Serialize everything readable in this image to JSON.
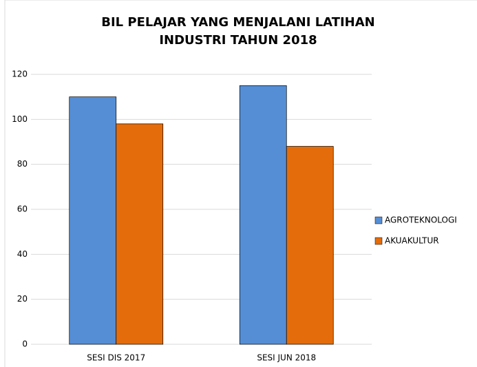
{
  "chart_data": {
    "type": "bar",
    "title": "BIL PELAJAR YANG MENJALANI LATIHAN INDUSTRI TAHUN 2018",
    "categories": [
      "SESI DIS 2017",
      "SESI JUN 2018"
    ],
    "series": [
      {
        "name": "AGROTEKNOLOGI",
        "color": "#558ed5",
        "values": [
          110,
          115
        ]
      },
      {
        "name": "AKUAKULTUR",
        "color": "#e46c0a",
        "values": [
          98,
          88
        ]
      }
    ],
    "ylim": [
      0,
      120
    ],
    "yticks": [
      0,
      20,
      40,
      60,
      80,
      100,
      120
    ],
    "grid": true,
    "legend": "right"
  }
}
